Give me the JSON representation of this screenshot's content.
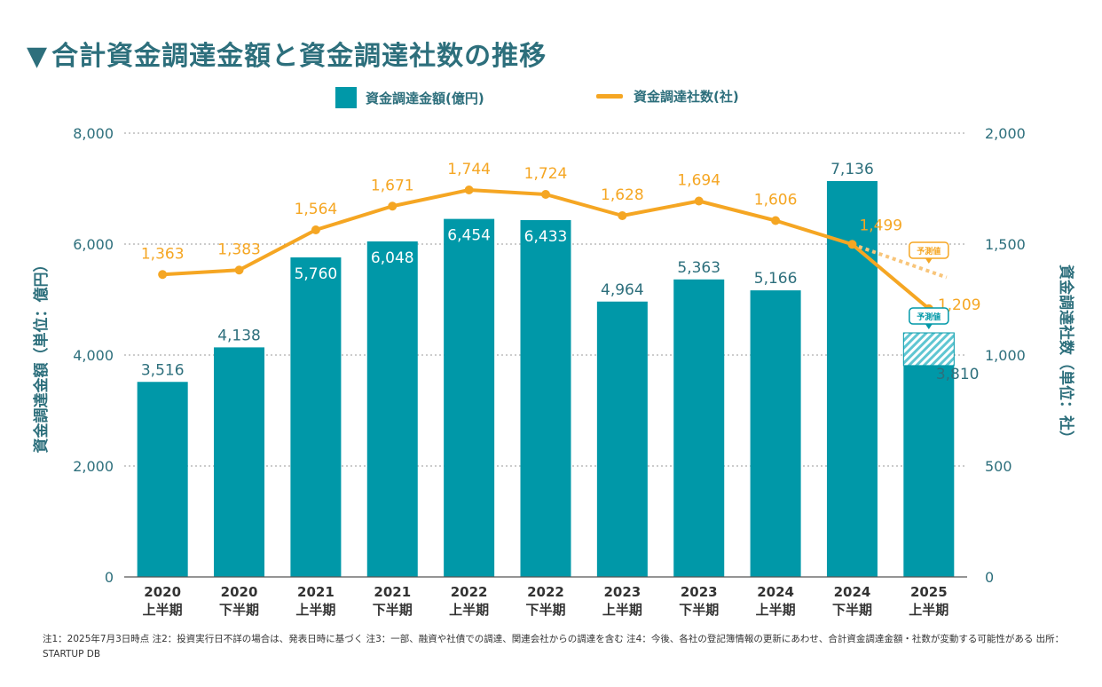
{
  "title": "合計資金調達金額と資金調達社数の推移",
  "title_marker": "▼",
  "legend": {
    "bar_label": "資金調達金額(億円)",
    "line_label": "資金調達社数(社)"
  },
  "forecast_badge": "予測値",
  "footnote": "注1：2025年7月3日時点 注2：投資実行日不詳の場合は、発表日時に基づく 注3：一部、融資や社債での調達、関連会社からの調達を含む 注4：今後、各社の登記簿情報の更新にあわせ、合計資金調達金額・社数が変動する可能性がある 出所：STARTUP DB",
  "colors": {
    "bar": "#0098a8",
    "line": "#f5a623",
    "axis_text": "#2d6f7c",
    "forecast_line": "#f8c57a",
    "forecast_hatch": "#5fc6d2"
  },
  "chart_data": {
    "type": "bar+line",
    "categories": [
      [
        "2020",
        "上半期"
      ],
      [
        "2020",
        "下半期"
      ],
      [
        "2021",
        "上半期"
      ],
      [
        "2021",
        "下半期"
      ],
      [
        "2022",
        "上半期"
      ],
      [
        "2022",
        "下半期"
      ],
      [
        "2023",
        "上半期"
      ],
      [
        "2023",
        "下半期"
      ],
      [
        "2024",
        "上半期"
      ],
      [
        "2024",
        "下半期"
      ],
      [
        "2025",
        "上半期"
      ]
    ],
    "series": [
      {
        "name": "資金調達金額(億円)",
        "type": "bar",
        "axis": "left",
        "values": [
          3516,
          4138,
          5760,
          6048,
          6454,
          6433,
          4964,
          5363,
          5166,
          7136,
          3810
        ],
        "labels": [
          "3,516",
          "4,138",
          "5,760",
          "6,048",
          "6,454",
          "6,433",
          "4,964",
          "5,363",
          "5,166",
          "7,136",
          "3,810"
        ],
        "forecast_last": 4400
      },
      {
        "name": "資金調達社数(社)",
        "type": "line",
        "axis": "right",
        "values": [
          1363,
          1383,
          1564,
          1671,
          1744,
          1724,
          1628,
          1694,
          1606,
          1499,
          1209
        ],
        "labels": [
          "1,363",
          "1,383",
          "1,564",
          "1,671",
          "1,744",
          "1,724",
          "1,628",
          "1,694",
          "1,606",
          "1,499",
          "1,209"
        ],
        "forecast_last": 1350
      }
    ],
    "y_left": {
      "label": "資金調達金額（単位：億円）",
      "range": [
        0,
        8000
      ],
      "ticks": [
        0,
        2000,
        4000,
        6000,
        8000
      ],
      "tick_labels": [
        "0",
        "2,000",
        "4,000",
        "6,000",
        "8,000"
      ]
    },
    "y_right": {
      "label": "資金調達社数（単位：社）",
      "range": [
        0,
        2000
      ],
      "ticks": [
        0,
        500,
        1000,
        1500,
        2000
      ],
      "tick_labels": [
        "0",
        "500",
        "1,000",
        "1,500",
        "2,000"
      ]
    },
    "grid": true,
    "legend_position": "top-center"
  }
}
